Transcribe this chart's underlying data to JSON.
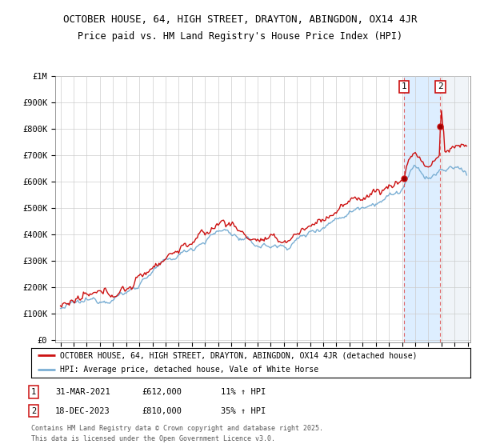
{
  "title1": "OCTOBER HOUSE, 64, HIGH STREET, DRAYTON, ABINGDON, OX14 4JR",
  "title2": "Price paid vs. HM Land Registry's House Price Index (HPI)",
  "ylabel_ticks": [
    "£0",
    "£100K",
    "£200K",
    "£300K",
    "£400K",
    "£500K",
    "£600K",
    "£700K",
    "£800K",
    "£900K",
    "£1M"
  ],
  "ytick_values": [
    0,
    100000,
    200000,
    300000,
    400000,
    500000,
    600000,
    700000,
    800000,
    900000,
    1000000
  ],
  "hpi_color": "#7bafd4",
  "price_color": "#cc1111",
  "marker1_info_date": "31-MAR-2021",
  "marker1_info_price": "£612,000",
  "marker1_info_hpi": "11% ↑ HPI",
  "marker2_info_date": "18-DEC-2023",
  "marker2_info_price": "£810,000",
  "marker2_info_hpi": "35% ↑ HPI",
  "legend_line1": "OCTOBER HOUSE, 64, HIGH STREET, DRAYTON, ABINGDON, OX14 4JR (detached house)",
  "legend_line2": "HPI: Average price, detached house, Vale of White Horse",
  "footer": "Contains HM Land Registry data © Crown copyright and database right 2025.\nThis data is licensed under the Open Government Licence v3.0.",
  "bg_color": "#ffffff",
  "grid_color": "#cccccc",
  "shade_color": "#ddeeff",
  "hatch_color": "#c8d8e8",
  "sale1_price": 612000,
  "sale2_price": 810000
}
